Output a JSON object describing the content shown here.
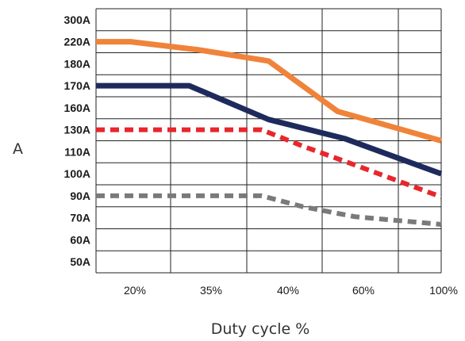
{
  "chart_data": {
    "type": "line",
    "xlabel": "Duty cycle %",
    "ylabel": "A",
    "categories": [
      "20%",
      "35%",
      "40%",
      "60%",
      "100%"
    ],
    "y_ticks": [
      "300A",
      "220A",
      "180A",
      "170A",
      "160A",
      "130A",
      "110A",
      "100A",
      "90A",
      "70A",
      "60A",
      "50A"
    ],
    "grid": true,
    "legend": "none",
    "x_range": [
      0,
      100
    ],
    "series": [
      {
        "color": "#f0833a",
        "style": "solid",
        "points": [
          [
            0,
            220
          ],
          [
            10,
            220
          ],
          [
            30,
            205
          ],
          [
            50,
            185
          ],
          [
            70,
            155
          ],
          [
            100,
            120
          ]
        ]
      },
      {
        "color": "#1f2a5c",
        "style": "solid",
        "points": [
          [
            0,
            170
          ],
          [
            27,
            170
          ],
          [
            50,
            144
          ],
          [
            72,
            122
          ],
          [
            100,
            100
          ]
        ]
      },
      {
        "color": "#e8262c",
        "style": "dashed",
        "points": [
          [
            0,
            130
          ],
          [
            48,
            130
          ],
          [
            60,
            115
          ],
          [
            75,
            104
          ],
          [
            100,
            89
          ]
        ]
      },
      {
        "color": "#7a7a7a",
        "style": "dashed",
        "points": [
          [
            0,
            90
          ],
          [
            48,
            90
          ],
          [
            60,
            80
          ],
          [
            75,
            71
          ],
          [
            100,
            67
          ]
        ]
      }
    ]
  }
}
